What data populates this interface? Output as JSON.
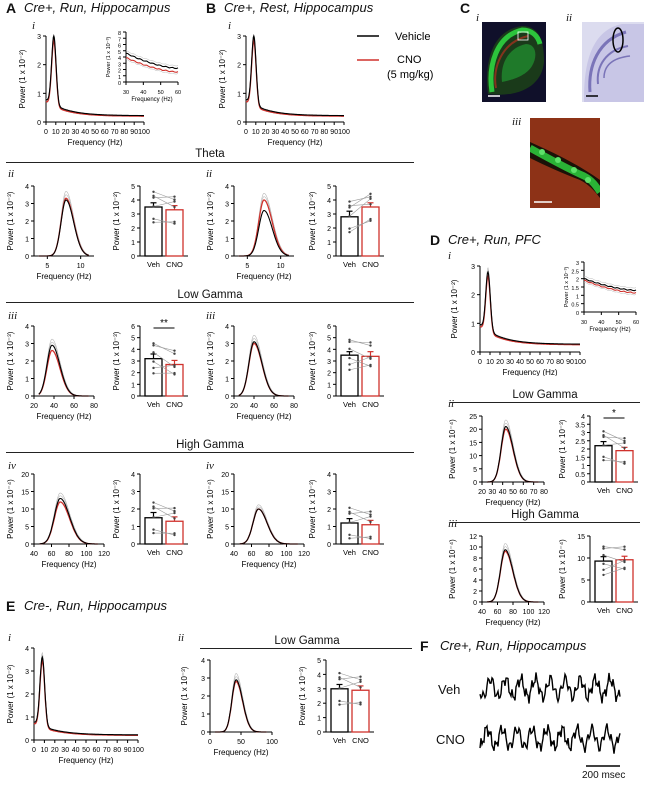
{
  "panels": {
    "A": {
      "letter": "A",
      "title": "Cre+, Run, Hippocampus"
    },
    "B": {
      "letter": "B",
      "title": "Cre+, Rest, Hippocampus"
    },
    "C": {
      "letter": "C"
    },
    "D": {
      "letter": "D",
      "title": "Cre+, Run, PFC"
    },
    "E": {
      "letter": "E",
      "title": "Cre-, Run, Hippocampus"
    },
    "F": {
      "letter": "F",
      "title": "Cre+, Run, Hippocampus",
      "trace_labels": [
        "Veh",
        "CNO"
      ],
      "scalebar": "200 msec"
    }
  },
  "subpanels": {
    "i": "i",
    "ii": "ii",
    "iii": "iii",
    "iv": "iv"
  },
  "sections": {
    "theta": "Theta",
    "low_gamma": "Low Gamma",
    "high_gamma": "High Gamma"
  },
  "legend": {
    "vehicle": "Vehicle",
    "cno": "CNO",
    "dose": "(5 mg/kg)"
  },
  "colors": {
    "vehicle": "#000000",
    "cno": "#d0322d",
    "sem": "#b8b8b8",
    "scope_bg": "#10102a",
    "scope_green": "#2cc43c",
    "scope_red": "#b03020",
    "nissl_bg": "#dcdcef",
    "nissl_stain": "#7a74b8"
  },
  "axis_labels": {
    "frequency": "Frequency (Hz)",
    "power_e2": "Power (1 x 10⁻²)",
    "power_e3": "Power (1 x 10⁻³)",
    "power_e4": "Power (1 x 10⁻⁴)"
  },
  "bar_labels": {
    "veh": "Veh",
    "cno": "CNO"
  },
  "significance": {
    "two_star": "**",
    "one_star": "*"
  },
  "chart_data": [
    {
      "id": "A-i",
      "type": "line",
      "xlim": [
        0,
        100
      ],
      "xticks": [
        0,
        10,
        20,
        30,
        40,
        50,
        60,
        70,
        80,
        90,
        100
      ],
      "ylim": [
        0,
        3
      ],
      "yticks": [
        0,
        1,
        2,
        3
      ],
      "peak_x": 8,
      "peak_veh": 2.6,
      "peak_cno": 2.5,
      "tail": 0.2,
      "inset": {
        "xlim": [
          30,
          60
        ],
        "xticks": [
          30,
          40,
          50,
          60
        ],
        "ylim": [
          0,
          8
        ],
        "yticks": [
          0,
          1,
          2,
          3,
          4,
          5,
          6,
          7,
          8
        ],
        "veh": [
          4.6,
          2.2
        ],
        "cno": [
          3.9,
          1.6
        ]
      }
    },
    {
      "id": "B-i",
      "type": "line",
      "xlim": [
        0,
        100
      ],
      "xticks": [
        0,
        10,
        20,
        30,
        40,
        50,
        60,
        70,
        80,
        90,
        100
      ],
      "ylim": [
        0,
        3
      ],
      "yticks": [
        0,
        1,
        2,
        3
      ],
      "peak_x": 8,
      "peak_veh": 2.6,
      "peak_cno": 2.5,
      "tail": 0.2
    },
    {
      "id": "A-ii",
      "type": "line",
      "xlim": [
        3,
        12
      ],
      "xticks": [
        5,
        10
      ],
      "ylim": [
        0,
        4
      ],
      "yticks": [
        0,
        1,
        2,
        3,
        4
      ],
      "center": 7.8,
      "width": 1.3,
      "veh": 3.2,
      "cno": 3.3
    },
    {
      "id": "A-ii-bar",
      "type": "bar",
      "categories": [
        "Veh",
        "CNO"
      ],
      "values": [
        3.5,
        3.3
      ],
      "err": [
        0.3,
        0.3
      ],
      "ylim": [
        0,
        5
      ],
      "yticks": [
        0,
        1,
        2,
        3,
        4,
        5
      ]
    },
    {
      "id": "B-ii",
      "type": "line",
      "xlim": [
        3,
        12
      ],
      "xticks": [
        5,
        10
      ],
      "ylim": [
        0,
        4
      ],
      "yticks": [
        0,
        1,
        2,
        3,
        4
      ],
      "center": 7.5,
      "width": 1.4,
      "veh": 2.6,
      "cno": 3.2
    },
    {
      "id": "B-ii-bar",
      "type": "bar",
      "categories": [
        "Veh",
        "CNO"
      ],
      "values": [
        2.8,
        3.5
      ],
      "err": [
        0.4,
        0.3
      ],
      "ylim": [
        0,
        5
      ],
      "yticks": [
        0,
        1,
        2,
        3,
        4,
        5
      ]
    },
    {
      "id": "A-iii",
      "type": "line",
      "xlim": [
        20,
        80
      ],
      "xticks": [
        20,
        40,
        60,
        80
      ],
      "ylim": [
        0,
        4
      ],
      "yticks": [
        0,
        1,
        2,
        3,
        4
      ],
      "center": 38,
      "width": 9,
      "veh": 2.9,
      "cno": 2.6
    },
    {
      "id": "A-iii-bar",
      "type": "bar",
      "categories": [
        "Veh",
        "CNO"
      ],
      "values": [
        3.2,
        2.7
      ],
      "err": [
        0.4,
        0.35
      ],
      "ylim": [
        0,
        6
      ],
      "yticks": [
        0,
        1,
        2,
        3,
        4,
        5,
        6
      ],
      "sig": "**"
    },
    {
      "id": "B-iii",
      "type": "line",
      "xlim": [
        20,
        80
      ],
      "xticks": [
        20,
        40,
        60,
        80
      ],
      "ylim": [
        0,
        4
      ],
      "yticks": [
        0,
        1,
        2,
        3,
        4
      ],
      "center": 40,
      "width": 9,
      "veh": 3.1,
      "cno": 3.0
    },
    {
      "id": "B-iii-bar",
      "type": "bar",
      "categories": [
        "Veh",
        "CNO"
      ],
      "values": [
        3.5,
        3.4
      ],
      "err": [
        0.3,
        0.4
      ],
      "ylim": [
        0,
        6
      ],
      "yticks": [
        0,
        1,
        2,
        3,
        4,
        5,
        6
      ]
    },
    {
      "id": "A-iv",
      "type": "line",
      "xlim": [
        40,
        120
      ],
      "xticks": [
        40,
        60,
        80,
        100,
        120
      ],
      "ylim": [
        0,
        20
      ],
      "yticks": [
        0,
        5,
        10,
        15,
        20
      ],
      "center": 70,
      "width": 12,
      "veh": 13,
      "cno": 12
    },
    {
      "id": "A-iv-bar",
      "type": "bar",
      "categories": [
        "Veh",
        "CNO"
      ],
      "values": [
        1.5,
        1.3
      ],
      "err": [
        0.3,
        0.25
      ],
      "ylim": [
        0,
        4
      ],
      "yticks": [
        0,
        1,
        2,
        3,
        4
      ]
    },
    {
      "id": "B-iv",
      "type": "line",
      "xlim": [
        40,
        120
      ],
      "xticks": [
        40,
        60,
        80,
        100,
        120
      ],
      "ylim": [
        0,
        20
      ],
      "yticks": [
        0,
        5,
        10,
        15,
        20
      ],
      "center": 68,
      "width": 11,
      "veh": 10,
      "cno": 10
    },
    {
      "id": "B-iv-bar",
      "type": "bar",
      "categories": [
        "Veh",
        "CNO"
      ],
      "values": [
        1.2,
        1.1
      ],
      "err": [
        0.25,
        0.25
      ],
      "ylim": [
        0,
        4
      ],
      "yticks": [
        0,
        1,
        2,
        3,
        4
      ]
    },
    {
      "id": "D-i",
      "type": "line",
      "xlim": [
        0,
        100
      ],
      "xticks": [
        0,
        10,
        20,
        30,
        40,
        50,
        60,
        70,
        80,
        90,
        100
      ],
      "ylim": [
        0,
        3
      ],
      "yticks": [
        0,
        1,
        2,
        3
      ],
      "peak_x": 8,
      "peak_veh": 2.3,
      "peak_cno": 2.2,
      "tail": 0.25,
      "inset": {
        "xlim": [
          30,
          60
        ],
        "xticks": [
          30,
          40,
          50,
          60
        ],
        "ylim": [
          0,
          3
        ],
        "yticks": [
          0,
          0.5,
          1,
          1.5,
          2,
          2.5,
          3
        ],
        "veh": [
          2.0,
          1.3
        ],
        "cno": [
          1.9,
          1.15
        ]
      }
    },
    {
      "id": "D-ii",
      "type": "line",
      "xlim": [
        20,
        80
      ],
      "xticks": [
        20,
        30,
        40,
        50,
        60,
        70,
        80
      ],
      "ylim": [
        0,
        25
      ],
      "yticks": [
        0,
        5,
        10,
        15,
        20,
        25
      ],
      "center": 43,
      "width": 8,
      "veh": 21,
      "cno": 20
    },
    {
      "id": "D-ii-bar",
      "type": "bar",
      "categories": [
        "Veh",
        "CNO"
      ],
      "values": [
        2.2,
        1.9
      ],
      "err": [
        0.25,
        0.2
      ],
      "ylim": [
        0,
        4
      ],
      "yticks": [
        0,
        0.5,
        1,
        1.5,
        2,
        2.5,
        3,
        3.5,
        4
      ],
      "sig": "*"
    },
    {
      "id": "D-iii",
      "type": "line",
      "xlim": [
        40,
        120
      ],
      "xticks": [
        40,
        60,
        80,
        100,
        120
      ],
      "ylim": [
        0,
        12
      ],
      "yticks": [
        0,
        2,
        4,
        6,
        8,
        10,
        12
      ],
      "center": 70,
      "width": 11,
      "veh": 9.5,
      "cno": 9.2
    },
    {
      "id": "D-iii-bar",
      "type": "bar",
      "categories": [
        "Veh",
        "CNO"
      ],
      "values": [
        9.3,
        9.6
      ],
      "err": [
        1.0,
        0.8
      ],
      "ylim": [
        0,
        15
      ],
      "yticks": [
        0,
        5,
        10,
        15
      ]
    },
    {
      "id": "E-i",
      "type": "line",
      "xlim": [
        0,
        100
      ],
      "xticks": [
        0,
        10,
        20,
        30,
        40,
        50,
        60,
        70,
        80,
        90,
        100
      ],
      "ylim": [
        0,
        4
      ],
      "yticks": [
        0,
        1,
        2,
        3,
        4
      ],
      "peak_x": 8,
      "peak_veh": 3.2,
      "peak_cno": 3.1,
      "tail": 0.2
    },
    {
      "id": "E-ii",
      "type": "line",
      "xlim": [
        0,
        100
      ],
      "xticks": [
        0,
        50,
        100
      ],
      "ylim": [
        0,
        4
      ],
      "yticks": [
        0,
        1,
        2,
        3,
        4
      ],
      "center": 42,
      "width": 12,
      "veh": 2.9,
      "cno": 2.8
    },
    {
      "id": "E-ii-bar",
      "type": "bar",
      "categories": [
        "Veh",
        "CNO"
      ],
      "values": [
        3.0,
        2.9
      ],
      "err": [
        0.3,
        0.3
      ],
      "ylim": [
        0,
        5
      ],
      "yticks": [
        0,
        1,
        2,
        3,
        4,
        5
      ]
    }
  ]
}
